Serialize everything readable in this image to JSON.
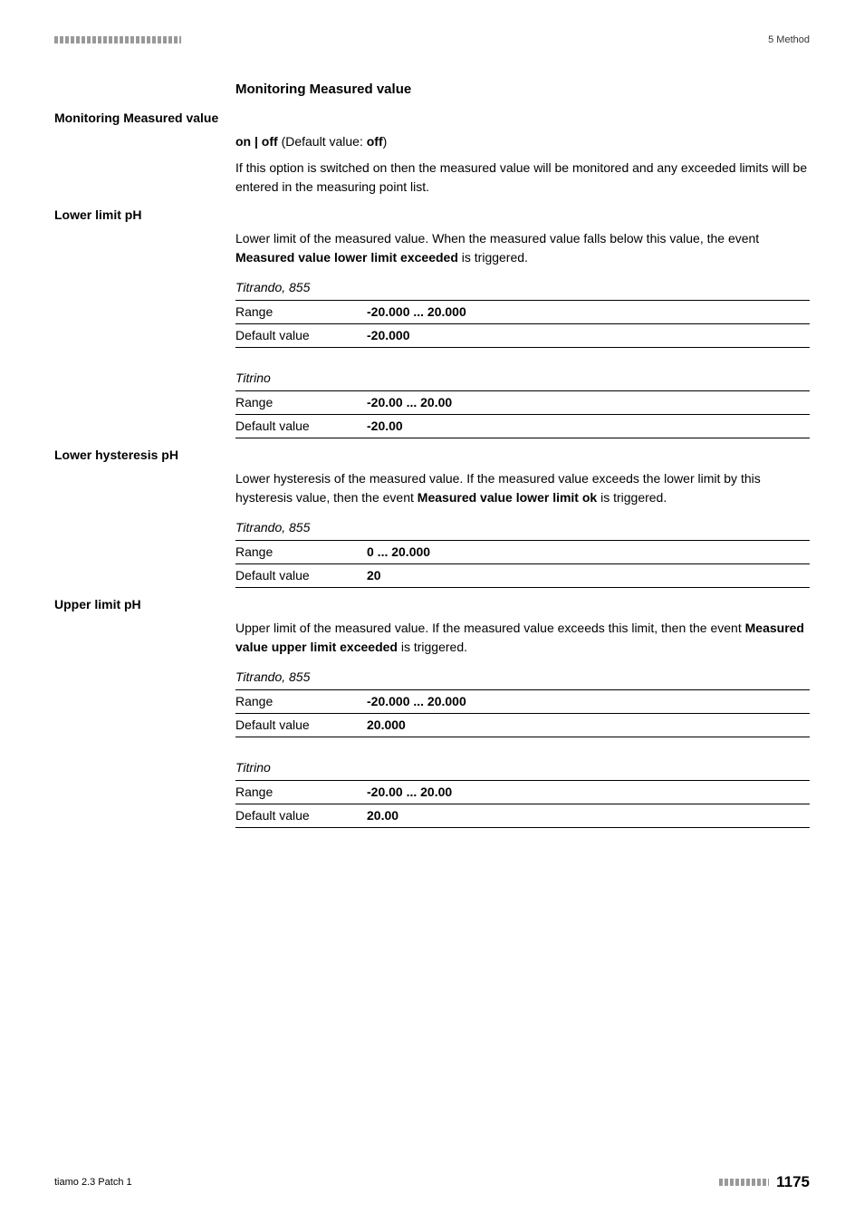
{
  "header": {
    "right": "5 Method"
  },
  "sections": {
    "main_title": "Monitoring Measured value"
  },
  "fields": {
    "monitoring_measured_value": {
      "label": "Monitoring Measured value",
      "on_off_prefix": "on | off",
      "on_off_default_label": " (Default value: ",
      "on_off_default_value": "off",
      "on_off_default_suffix": ")",
      "description": "If this option is switched on then the measured value will be monitored and any exceeded limits will be entered in the measuring point list."
    },
    "lower_limit_ph": {
      "label": "Lower limit pH",
      "desc_pre": "Lower limit of the measured value. When the measured value falls below this value, the event ",
      "desc_bold": "Measured value lower limit exceeded",
      "desc_post": " is triggered.",
      "titrando": {
        "label": "Titrando, 855",
        "range_label": "Range",
        "range_value": "-20.000 ... 20.000",
        "default_label": "Default value",
        "default_value": "-20.000"
      },
      "titrino": {
        "label": "Titrino",
        "range_label": "Range",
        "range_value": "-20.00 ... 20.00",
        "default_label": "Default value",
        "default_value": "-20.00"
      }
    },
    "lower_hysteresis_ph": {
      "label": "Lower hysteresis pH",
      "desc_pre": "Lower hysteresis of the measured value. If the measured value exceeds the lower limit by this hysteresis value, then the event ",
      "desc_bold": "Measured value lower limit ok",
      "desc_post": " is triggered.",
      "titrando": {
        "label": "Titrando, 855",
        "range_label": "Range",
        "range_value": "0 ... 20.000",
        "default_label": "Default value",
        "default_value": "20"
      }
    },
    "upper_limit_ph": {
      "label": "Upper limit pH",
      "desc_pre": "Upper limit of the measured value. If the measured value exceeds this limit, then the event ",
      "desc_bold": "Measured value upper limit exceeded",
      "desc_post": " is triggered.",
      "titrando": {
        "label": "Titrando, 855",
        "range_label": "Range",
        "range_value": "-20.000 ... 20.000",
        "default_label": "Default value",
        "default_value": "20.000"
      },
      "titrino": {
        "label": "Titrino",
        "range_label": "Range",
        "range_value": "-20.00 ... 20.00",
        "default_label": "Default value",
        "default_value": "20.00"
      }
    }
  },
  "footer": {
    "left": "tiamo 2.3 Patch 1",
    "page": "1175"
  }
}
